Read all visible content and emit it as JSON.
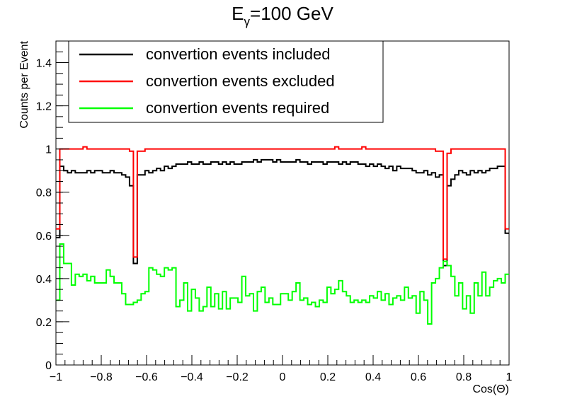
{
  "chart_data": {
    "type": "line",
    "title": "E",
    "title_subscript": "γ",
    "title_suffix": "=100 GeV",
    "xlabel": "Cos(Θ)",
    "ylabel": "Counts per Event",
    "xlim": [
      -1,
      1
    ],
    "ylim": [
      0,
      1.5
    ],
    "x_ticks": [
      -1,
      -0.8,
      -0.6,
      -0.4,
      -0.2,
      0,
      0.2,
      0.4,
      0.6,
      0.8,
      1
    ],
    "x_tick_labels": [
      "−1",
      "−0.8",
      "−0.6",
      "−0.4",
      "−0.2",
      "0",
      "0.2",
      "0.4",
      "0.6",
      "0.8",
      "1"
    ],
    "y_ticks": [
      0,
      0.2,
      0.4,
      0.6,
      0.8,
      1,
      1.2,
      1.4
    ],
    "y_tick_labels": [
      "0",
      "0.2",
      "0.4",
      "0.6",
      "0.8",
      "1",
      "1.2",
      "1.4"
    ],
    "grid": false,
    "legend_position": "top-left",
    "histogram_style": "step",
    "series": [
      {
        "name": "convertion events included",
        "color": "#000000",
        "values": [
          0.59,
          0.92,
          0.9,
          0.89,
          0.9,
          0.89,
          0.89,
          0.89,
          0.9,
          0.89,
          0.9,
          0.9,
          0.89,
          0.89,
          0.9,
          0.89,
          0.89,
          0.88,
          0.87,
          0.83,
          0.47,
          0.88,
          0.88,
          0.9,
          0.89,
          0.9,
          0.91,
          0.9,
          0.92,
          0.91,
          0.92,
          0.93,
          0.93,
          0.93,
          0.94,
          0.93,
          0.93,
          0.94,
          0.93,
          0.93,
          0.94,
          0.94,
          0.93,
          0.94,
          0.93,
          0.94,
          0.93,
          0.93,
          0.94,
          0.94,
          0.94,
          0.95,
          0.94,
          0.95,
          0.95,
          0.95,
          0.94,
          0.95,
          0.94,
          0.94,
          0.94,
          0.94,
          0.95,
          0.94,
          0.94,
          0.93,
          0.94,
          0.94,
          0.94,
          0.93,
          0.94,
          0.94,
          0.94,
          0.93,
          0.94,
          0.93,
          0.94,
          0.94,
          0.93,
          0.93,
          0.92,
          0.93,
          0.92,
          0.93,
          0.92,
          0.91,
          0.92,
          0.9,
          0.92,
          0.91,
          0.91,
          0.91,
          0.9,
          0.89,
          0.89,
          0.9,
          0.88,
          0.89,
          0.87,
          0.88,
          0.46,
          0.83,
          0.86,
          0.88,
          0.9,
          0.89,
          0.88,
          0.9,
          0.89,
          0.9,
          0.89,
          0.9,
          0.91,
          0.91,
          0.92,
          0.92,
          0.61
        ]
      },
      {
        "name": "convertion events excluded",
        "color": "#ff0000",
        "values": [
          0.63,
          1.0,
          1.0,
          1.0,
          1.0,
          1.0,
          1.0,
          1.01,
          1.0,
          1.0,
          1.0,
          1.0,
          1.0,
          1.0,
          1.0,
          1.0,
          1.0,
          1.0,
          1.0,
          0.99,
          0.5,
          0.99,
          0.99,
          1.0,
          1.0,
          1.0,
          1.0,
          1.0,
          1.0,
          1.0,
          1.0,
          1.0,
          1.0,
          1.0,
          1.0,
          1.0,
          1.0,
          1.0,
          1.0,
          1.0,
          1.0,
          1.0,
          1.0,
          1.0,
          1.0,
          1.0,
          1.0,
          1.0,
          1.0,
          1.0,
          1.0,
          1.0,
          1.0,
          1.0,
          1.0,
          1.0,
          1.0,
          1.0,
          1.0,
          1.0,
          1.0,
          1.0,
          1.0,
          1.0,
          1.0,
          1.0,
          1.0,
          1.0,
          1.0,
          1.0,
          1.0,
          1.0,
          1.01,
          1.0,
          1.0,
          1.0,
          1.0,
          1.0,
          1.0,
          1.01,
          1.0,
          1.0,
          1.0,
          1.0,
          1.0,
          1.0,
          1.0,
          1.0,
          1.0,
          1.0,
          1.0,
          1.0,
          1.0,
          1.0,
          1.0,
          1.0,
          1.0,
          1.0,
          0.99,
          0.99,
          0.49,
          0.98,
          1.0,
          1.0,
          1.0,
          1.0,
          1.0,
          1.0,
          1.0,
          1.0,
          1.0,
          1.0,
          1.0,
          1.0,
          1.0,
          1.0,
          0.63
        ]
      },
      {
        "name": "convertion events required",
        "color": "#00ff00",
        "values": [
          0.3,
          0.56,
          0.47,
          0.47,
          0.37,
          0.42,
          0.41,
          0.42,
          0.39,
          0.41,
          0.38,
          0.38,
          0.38,
          0.44,
          0.41,
          0.38,
          0.38,
          0.33,
          0.28,
          0.28,
          0.29,
          0.3,
          0.33,
          0.34,
          0.45,
          0.44,
          0.42,
          0.41,
          0.45,
          0.44,
          0.45,
          0.27,
          0.3,
          0.38,
          0.25,
          0.35,
          0.31,
          0.25,
          0.27,
          0.36,
          0.27,
          0.33,
          0.26,
          0.34,
          0.26,
          0.31,
          0.31,
          0.29,
          0.41,
          0.32,
          0.33,
          0.25,
          0.34,
          0.36,
          0.29,
          0.31,
          0.28,
          0.28,
          0.33,
          0.33,
          0.3,
          0.34,
          0.38,
          0.3,
          0.31,
          0.28,
          0.29,
          0.27,
          0.3,
          0.29,
          0.36,
          0.33,
          0.35,
          0.39,
          0.34,
          0.32,
          0.29,
          0.3,
          0.29,
          0.3,
          0.29,
          0.32,
          0.31,
          0.34,
          0.3,
          0.33,
          0.28,
          0.31,
          0.32,
          0.3,
          0.36,
          0.31,
          0.32,
          0.24,
          0.34,
          0.3,
          0.19,
          0.38,
          0.4,
          0.45,
          0.48,
          0.46,
          0.41,
          0.32,
          0.38,
          0.26,
          0.32,
          0.24,
          0.38,
          0.32,
          0.43,
          0.32,
          0.36,
          0.39,
          0.4,
          0.38,
          0.42
        ]
      }
    ]
  }
}
